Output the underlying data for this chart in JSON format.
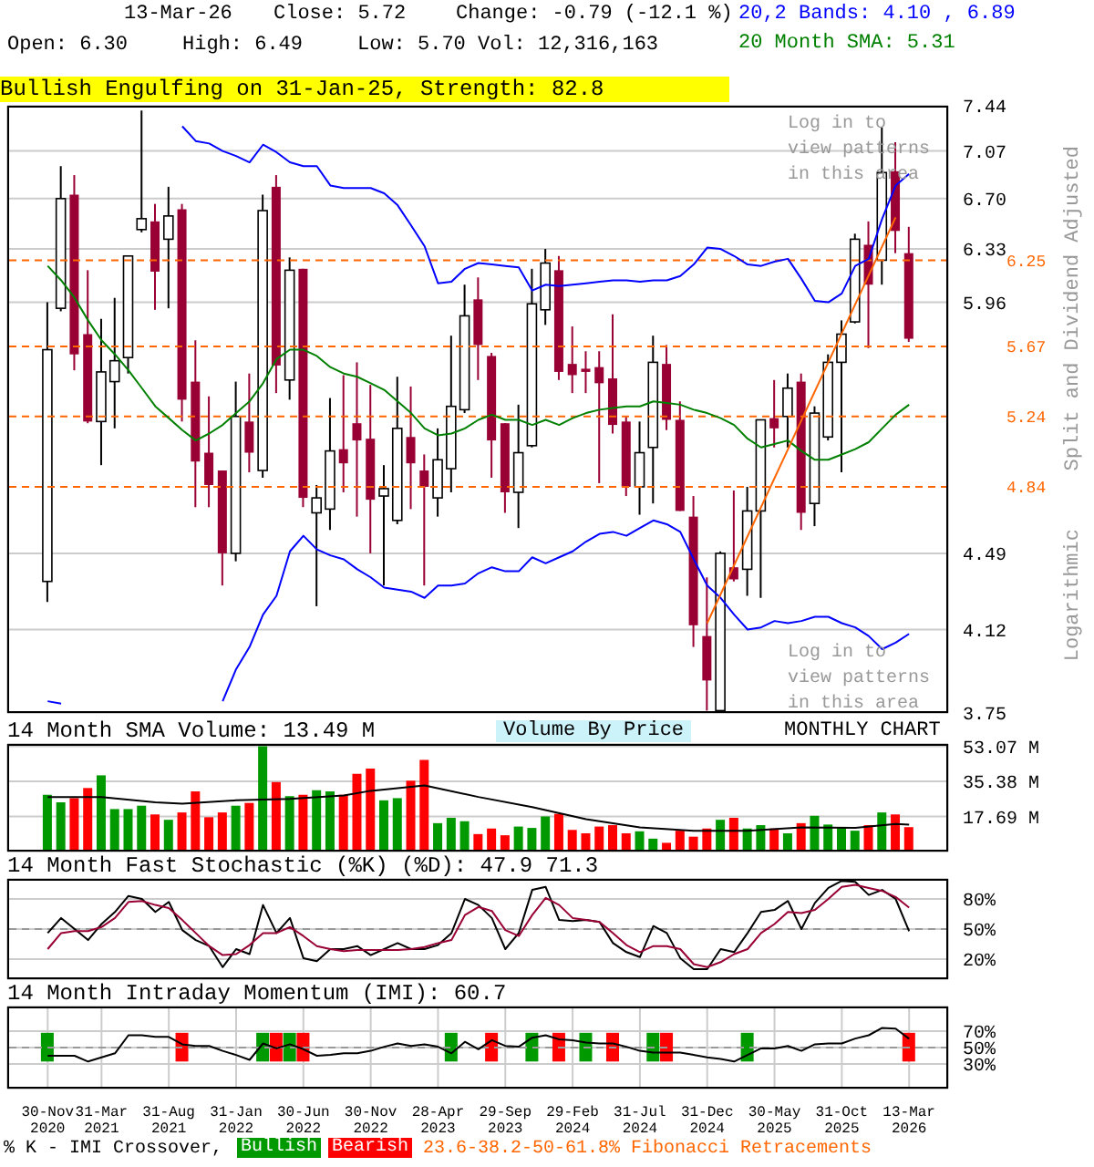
{
  "chart_data": [
    {
      "type": "candlestick",
      "tick_labels": "y",
      "log": "y",
      "grid": true,
      "legend": "top right",
      "ylabel": "Split and Dividend Adjusted",
      "categories": [
        null,
        null,
        null,
        null,
        null,
        null,
        null,
        null,
        null,
        null,
        null,
        null,
        null,
        null,
        null,
        null,
        null,
        null,
        null,
        null,
        null,
        null,
        null,
        null,
        null,
        null,
        null,
        null,
        null,
        null,
        null,
        null,
        null,
        null,
        null,
        null,
        null,
        null,
        null,
        null,
        null,
        null,
        null,
        null,
        null,
        null,
        null,
        null,
        null,
        null,
        null,
        null,
        null,
        null,
        null,
        null,
        null,
        null,
        null,
        null,
        null,
        null,
        null,
        null,
        null
      ],
      "ohlc": [
        [
          4.35,
          5.96,
          4.25,
          5.65
        ],
        [
          5.92,
          6.95,
          5.9,
          6.7
        ],
        [
          6.73,
          6.88,
          5.52,
          5.62
        ],
        [
          5.75,
          6.18,
          5.2,
          5.21
        ],
        [
          5.21,
          5.85,
          4.96,
          5.51
        ],
        [
          5.45,
          5.99,
          5.17,
          5.58
        ],
        [
          5.6,
          6.28,
          5.5,
          6.28
        ],
        [
          6.47,
          7.4,
          6.45,
          6.55
        ],
        [
          6.53,
          6.66,
          5.91,
          6.17
        ],
        [
          6.4,
          6.79,
          5.92,
          6.57
        ],
        [
          6.62,
          6.66,
          5.21,
          5.34
        ],
        [
          5.45,
          5.71,
          4.73,
          4.98
        ],
        [
          5.03,
          5.36,
          4.73,
          4.85
        ],
        [
          4.93,
          4.93,
          4.33,
          4.49
        ],
        [
          4.49,
          5.45,
          4.45,
          5.24
        ],
        [
          5.21,
          5.5,
          4.92,
          5.03
        ],
        [
          4.93,
          6.73,
          4.89,
          6.61
        ],
        [
          6.79,
          6.88,
          5.38,
          5.55
        ],
        [
          5.46,
          6.27,
          5.34,
          6.18
        ],
        [
          6.19,
          6.19,
          4.73,
          4.78
        ],
        [
          4.7,
          4.85,
          4.23,
          4.78
        ],
        [
          4.72,
          5.35,
          4.61,
          5.04
        ],
        [
          5.05,
          5.49,
          4.81,
          4.97
        ],
        [
          5.2,
          5.57,
          4.68,
          5.1
        ],
        [
          5.11,
          5.43,
          4.49,
          4.77
        ],
        [
          4.79,
          4.96,
          4.33,
          4.83
        ],
        [
          4.66,
          5.48,
          4.64,
          5.17
        ],
        [
          5.12,
          5.42,
          4.72,
          4.97
        ],
        [
          4.93,
          5.02,
          4.33,
          4.84
        ],
        [
          4.78,
          5.17,
          4.68,
          4.99
        ],
        [
          4.94,
          5.74,
          4.81,
          5.3
        ],
        [
          5.28,
          6.08,
          5.26,
          5.87
        ],
        [
          5.98,
          6.13,
          5.46,
          5.68
        ],
        [
          5.61,
          5.63,
          4.89,
          5.1
        ],
        [
          5.2,
          5.2,
          4.7,
          4.81
        ],
        [
          4.81,
          5.31,
          4.62,
          5.03
        ],
        [
          5.07,
          6.19,
          5.06,
          5.95
        ],
        [
          5.91,
          6.33,
          5.81,
          6.23
        ],
        [
          6.18,
          6.28,
          5.46,
          5.51
        ],
        [
          5.56,
          5.8,
          5.38,
          5.49
        ],
        [
          5.53,
          5.64,
          5.38,
          5.51
        ],
        [
          5.54,
          5.64,
          4.86,
          5.44
        ],
        [
          5.47,
          5.88,
          5.14,
          5.19
        ],
        [
          5.21,
          5.24,
          4.79,
          4.84
        ],
        [
          4.84,
          5.21,
          4.69,
          5.03
        ],
        [
          5.06,
          5.74,
          4.75,
          5.57
        ],
        [
          5.56,
          5.68,
          5.16,
          5.22
        ],
        [
          5.22,
          5.33,
          4.71,
          4.71
        ],
        [
          4.68,
          4.79,
          4.04,
          4.14
        ],
        [
          4.09,
          4.37,
          3.76,
          3.89
        ],
        [
          3.76,
          4.5,
          3.75,
          4.49
        ],
        [
          4.42,
          4.82,
          4.35,
          4.36
        ],
        [
          4.41,
          4.84,
          4.28,
          4.71
        ],
        [
          4.71,
          5.22,
          4.27,
          5.22
        ],
        [
          5.23,
          5.46,
          5.06,
          5.17
        ],
        [
          5.24,
          5.5,
          5.06,
          5.41
        ],
        [
          5.45,
          5.5,
          4.61,
          4.7
        ],
        [
          4.75,
          5.3,
          4.63,
          5.26
        ],
        [
          5.12,
          5.62,
          5.1,
          5.57
        ],
        [
          5.57,
          5.84,
          4.92,
          5.75
        ],
        [
          5.83,
          6.44,
          5.82,
          6.4
        ],
        [
          6.36,
          6.53,
          5.66,
          6.08
        ],
        [
          6.25,
          7.26,
          6.08,
          6.9
        ],
        [
          6.91,
          7.14,
          6.3,
          6.46
        ],
        [
          6.3,
          6.49,
          5.7,
          5.72
        ]
      ],
      "colors": [
        "#ffffff",
        "#ffffff",
        "#990033",
        "#990033",
        "#ffffff",
        "#ffffff",
        "#ffffff",
        "#ffffff",
        "#990033",
        "#ffffff",
        "#990033",
        "#990033",
        "#990033",
        "#990033",
        "#ffffff",
        "#990033",
        "#ffffff",
        "#990033",
        "#ffffff",
        "#990033",
        "#ffffff",
        "#ffffff",
        "#990033",
        "#990033",
        "#990033",
        "#ffffff",
        "#ffffff",
        "#990033",
        "#990033",
        "#ffffff",
        "#ffffff",
        "#ffffff",
        "#990033",
        "#990033",
        "#990033",
        "#ffffff",
        "#ffffff",
        "#ffffff",
        "#990033",
        "#990033",
        "#990033",
        "#990033",
        "#990033",
        "#990033",
        "#ffffff",
        "#ffffff",
        "#990033",
        "#990033",
        "#990033",
        "#990033",
        "#ffffff",
        "#990033",
        "#ffffff",
        "#ffffff",
        "#990033",
        "#ffffff",
        "#990033",
        "#ffffff",
        "#ffffff",
        "#ffffff",
        "#ffffff",
        "#990033",
        "#ffffff",
        "#990033",
        "#990033"
      ],
      "series": [
        {
          "type": "line",
          "name": "20,2 Bands: 4.10 , 6.89",
          "color": "#0000ff",
          "values": [
            null,
            null,
            null,
            null,
            null,
            null,
            null,
            null,
            null,
            null,
            7.27,
            7.15,
            7.13,
            7.07,
            7.03,
            6.98,
            7.12,
            7.06,
            6.98,
            6.95,
            6.95,
            6.8,
            6.78,
            6.78,
            6.78,
            6.74,
            6.65,
            6.5,
            6.35,
            6.09,
            6.1,
            6.19,
            6.23,
            6.22,
            6.21,
            6.2,
            6.04,
            6.08,
            6.07,
            6.08,
            6.09,
            6.1,
            6.11,
            6.11,
            6.1,
            6.11,
            6.11,
            6.14,
            6.22,
            6.34,
            6.33,
            6.28,
            6.22,
            6.21,
            6.24,
            6.26,
            6.12,
            5.97,
            5.96,
            6.02,
            6.21,
            6.26,
            6.55,
            6.8,
            6.89
          ]
        },
        {
          "type": "line",
          "color": "#0000ff",
          "values": [
            3.8,
            3.79,
            null,
            null,
            null,
            null,
            null,
            null,
            null,
            null,
            null,
            null,
            null,
            null,
            null,
            null,
            null,
            null,
            null,
            null,
            null,
            null,
            null,
            null,
            null,
            null,
            null,
            null,
            null,
            null,
            null,
            null,
            null,
            null,
            null,
            null,
            null,
            null,
            null,
            null,
            null,
            null,
            null,
            null,
            null,
            null,
            null,
            null,
            null,
            null,
            null,
            null,
            null,
            null,
            null,
            null,
            null,
            null,
            null,
            null,
            null,
            null,
            null,
            null,
            null
          ]
        },
        {
          "type": "line",
          "color": "#0000ff",
          "values": [
            null,
            null,
            null,
            null,
            null,
            null,
            null,
            null,
            null,
            null,
            null,
            null,
            null,
            3.8,
            3.94,
            4.04,
            4.19,
            4.28,
            4.5,
            4.58,
            4.51,
            4.48,
            4.46,
            4.41,
            4.37,
            4.32,
            4.31,
            4.3,
            4.27,
            4.33,
            4.33,
            4.34,
            4.39,
            4.42,
            4.4,
            4.4,
            4.47,
            4.44,
            4.47,
            4.5,
            4.55,
            4.59,
            4.6,
            4.58,
            4.62,
            4.66,
            4.64,
            4.6,
            4.46,
            4.33,
            4.27,
            4.19,
            4.12,
            4.13,
            4.16,
            4.15,
            4.16,
            4.18,
            4.18,
            4.15,
            4.13,
            4.09,
            4.03,
            4.06,
            4.1
          ]
        },
        {
          "type": "line",
          "name": "20 Month SMA: 5.31",
          "color": "#008000",
          "values": [
            6.21,
            6.11,
            5.99,
            5.84,
            5.71,
            5.62,
            5.52,
            5.41,
            5.3,
            5.23,
            5.16,
            5.1,
            5.14,
            5.19,
            5.26,
            5.33,
            5.44,
            5.59,
            5.65,
            5.65,
            5.61,
            5.54,
            5.5,
            5.48,
            5.44,
            5.4,
            5.33,
            5.26,
            5.17,
            5.13,
            5.14,
            5.17,
            5.22,
            5.25,
            5.22,
            5.22,
            5.19,
            5.22,
            5.19,
            5.23,
            5.26,
            5.28,
            5.29,
            5.3,
            5.3,
            5.33,
            5.32,
            5.31,
            5.28,
            5.26,
            5.23,
            5.19,
            5.11,
            5.06,
            5.08,
            5.1,
            5.04,
            4.99,
            4.99,
            5.02,
            5.05,
            5.09,
            5.17,
            5.25,
            5.31
          ]
        },
        {
          "type": "line",
          "color": "#ff6600",
          "values": [
            null,
            null,
            null,
            null,
            null,
            null,
            null,
            null,
            null,
            null,
            null,
            null,
            null,
            null,
            null,
            null,
            null,
            null,
            null,
            null,
            null,
            null,
            null,
            null,
            null,
            null,
            null,
            null,
            null,
            null,
            null,
            null,
            null,
            null,
            null,
            null,
            null,
            null,
            null,
            null,
            null,
            null,
            null,
            null,
            null,
            null,
            null,
            null,
            null,
            4.15,
            null,
            null,
            null,
            null,
            null,
            null,
            null,
            null,
            null,
            null,
            null,
            null,
            null,
            6.56,
            null
          ]
        }
      ],
      "ylim": [
        3.75,
        7.44
      ],
      "yticks": [
        3.75,
        4.12,
        4.49,
        5.96,
        6.33,
        {
          "value": 6.7,
          "label": "6.70"
        },
        7.07,
        7.44
      ],
      "ref_lines": [
        {
          "axis": "y",
          "value": 6.25,
          "label": "6.25",
          "color": "#ff6600",
          "line_style": "dashed"
        },
        {
          "axis": "y",
          "value": 5.67,
          "label": "5.67",
          "color": "#ff6600",
          "line_style": "dashed"
        },
        {
          "axis": "y",
          "value": 5.24,
          "label": "5.24",
          "color": "#ff6600",
          "line_style": "dashed"
        },
        {
          "axis": "y",
          "value": 4.84,
          "label": "4.84",
          "color": "#ff6600",
          "line_style": "dashed"
        }
      ],
      "annotations": [
        "13-Mar-26",
        "Close: 5.72",
        "Change: -0.79 (-12.1 %)",
        "Open: 6.30",
        "High: 6.49",
        "Low: 5.70",
        "Vol: 12,316,163",
        "Bullish Engulfing on 31-Jan-25, Strength: 82.8",
        "Log in to view patterns in this area",
        "Log in to view patterns in this area",
        "Logarithmic"
      ]
    },
    {
      "type": "bar",
      "tick_labels": "y",
      "grid": true,
      "title": "14 Month SMA Volume: 13.49 M",
      "categories": [
        null,
        null,
        null,
        null,
        null,
        null,
        null,
        null,
        null,
        null,
        null,
        null,
        null,
        null,
        null,
        null,
        null,
        null,
        null,
        null,
        null,
        null,
        null,
        null,
        null,
        null,
        null,
        null,
        null,
        null,
        null,
        null,
        null,
        null,
        null,
        null,
        null,
        null,
        null,
        null,
        null,
        null,
        null,
        null,
        null,
        null,
        null,
        null,
        null,
        null,
        null,
        null,
        null,
        null,
        null,
        null,
        null,
        null,
        null,
        null,
        null,
        null,
        null,
        null,
        null
      ],
      "series": [
        {
          "type": "bar",
          "values": [
            28.6,
            24.8,
            26.9,
            32.0,
            38.4,
            21.4,
            21.4,
            23.1,
            18.7,
            16.0,
            19.7,
            30.3,
            17.3,
            19.7,
            23.1,
            24.5,
            53.0,
            35.0,
            27.9,
            28.6,
            30.9,
            30.3,
            28.6,
            39.1,
            41.8,
            25.8,
            26.9,
            35.7,
            46.2,
            14.3,
            17.0,
            15.3,
            8.8,
            11.6,
            8.2,
            12.6,
            11.9,
            17.7,
            19.0,
            10.9,
            9.2,
            12.6,
            13.3,
            9.2,
            10.2,
            6.5,
            4.4,
            10.5,
            7.5,
            11.6,
            16.0,
            17.0,
            11.6,
            13.3,
            11.6,
            9.2,
            14.3,
            18.0,
            13.6,
            12.2,
            10.5,
            13.3,
            19.7,
            18.7,
            12.3
          ],
          "colors": [
            "#009900",
            "#009900",
            "#ff0000",
            "#ff0000",
            "#009900",
            "#009900",
            "#009900",
            "#009900",
            "#ff0000",
            "#009900",
            "#ff0000",
            "#ff0000",
            "#ff0000",
            "#ff0000",
            "#009900",
            "#ff0000",
            "#009900",
            "#ff0000",
            "#009900",
            "#ff0000",
            "#009900",
            "#009900",
            "#ff0000",
            "#ff0000",
            "#ff0000",
            "#009900",
            "#009900",
            "#ff0000",
            "#ff0000",
            "#009900",
            "#009900",
            "#009900",
            "#ff0000",
            "#ff0000",
            "#ff0000",
            "#009900",
            "#009900",
            "#009900",
            "#ff0000",
            "#ff0000",
            "#ff0000",
            "#ff0000",
            "#ff0000",
            "#ff0000",
            "#009900",
            "#009900",
            "#ff0000",
            "#ff0000",
            "#ff0000",
            "#ff0000",
            "#009900",
            "#ff0000",
            "#009900",
            "#009900",
            "#ff0000",
            "#009900",
            "#ff0000",
            "#009900",
            "#009900",
            "#009900",
            "#009900",
            "#ff0000",
            "#009900",
            "#ff0000",
            "#ff0000"
          ]
        },
        {
          "type": "line",
          "color": "#000000",
          "values": [
            27.5,
            null,
            null,
            null,
            27.5,
            null,
            null,
            null,
            24.8,
            null,
            24.1,
            null,
            null,
            null,
            25.8,
            null,
            null,
            null,
            26.5,
            null,
            null,
            null,
            28.2,
            null,
            30.6,
            null,
            null,
            32.6,
            33.3,
            null,
            null,
            null,
            27.5,
            null,
            null,
            null,
            22.4,
            null,
            null,
            null,
            16.3,
            null,
            null,
            null,
            12.2,
            null,
            null,
            null,
            10.5,
            null,
            null,
            null,
            10.5,
            null,
            null,
            null,
            12.2,
            null,
            null,
            null,
            11.9,
            null,
            null,
            13.9,
            13.5
          ]
        }
      ],
      "ylim": [
        0,
        54.2
      ],
      "yticks": [
        {
          "value": 17.69,
          "label": "17.69 M"
        },
        {
          "value": 35.38,
          "label": "35.38 M"
        },
        {
          "value": 53.07,
          "label": "53.07 M"
        }
      ],
      "annotations": [
        "Volume By Price",
        "MONTHLY CHART"
      ]
    },
    {
      "type": "line",
      "tick_labels": "y",
      "grid": true,
      "title": "14 Month Fast Stochastic (%K) (%D): 47.9  71.3",
      "categories": [
        null,
        null,
        null,
        null,
        null,
        null,
        null,
        null,
        null,
        null,
        null,
        null,
        null,
        null,
        null,
        null,
        null,
        null,
        null,
        null,
        null,
        null,
        null,
        null,
        null,
        null,
        null,
        null,
        null,
        null,
        null,
        null,
        null,
        null,
        null,
        null,
        null,
        null,
        null,
        null,
        null,
        null,
        null,
        null,
        null,
        null,
        null,
        null,
        null,
        null,
        null,
        null,
        null,
        null,
        null,
        null,
        null,
        null,
        null,
        null,
        null,
        null,
        null,
        null,
        null
      ],
      "series": [
        {
          "color": "#000000",
          "values": [
            46,
            61,
            50,
            39,
            55,
            67,
            83,
            80,
            67,
            77,
            49,
            39,
            33,
            12,
            30,
            25,
            74,
            46,
            61,
            21,
            18,
            30,
            30,
            33,
            24,
            30,
            36,
            30,
            30,
            34,
            46,
            80,
            74,
            61,
            30,
            46,
            89,
            92,
            59,
            58,
            59,
            57,
            36,
            27,
            22,
            53,
            46,
            21,
            10,
            10,
            30,
            27,
            46,
            67,
            69,
            78,
            50,
            76,
            91,
            98,
            97,
            84,
            89,
            80,
            47.9
          ]
        },
        {
          "color": "#990033",
          "values": [
            30,
            46,
            48,
            48,
            52,
            61,
            77,
            78,
            74,
            71,
            59,
            46,
            33,
            24,
            25,
            34,
            46,
            46,
            52,
            43,
            33,
            30,
            28,
            29,
            29,
            29,
            29,
            30,
            32,
            36,
            39,
            64,
            72,
            68,
            49,
            43,
            64,
            81,
            74,
            61,
            59,
            57,
            46,
            34,
            27,
            33,
            33,
            30,
            15,
            12,
            17,
            25,
            30,
            46,
            55,
            67,
            66,
            69,
            80,
            92,
            94,
            91,
            88,
            82,
            71.3
          ]
        }
      ],
      "ylim": [
        0,
        100
      ],
      "yticks": [
        {
          "value": 20,
          "label": "20%"
        },
        {
          "value": 50,
          "label": "50%"
        },
        {
          "value": 80,
          "label": "80%"
        }
      ],
      "ref_lines": [
        {
          "axis": "y",
          "value": 50,
          "color": "#999999",
          "line_style": "dashed"
        }
      ]
    },
    {
      "type": "line",
      "grid": true,
      "legend": "bottom",
      "title": "14 Month Intraday Momentum (IMI): 60.7",
      "categories": [
        "30-Nov 2020",
        null,
        null,
        null,
        "31-Mar 2021",
        null,
        null,
        null,
        null,
        "31-Aug 2021",
        null,
        null,
        null,
        null,
        "31-Jan 2022",
        null,
        null,
        null,
        null,
        "30-Jun 2022",
        null,
        null,
        null,
        null,
        "30-Nov 2022",
        null,
        null,
        null,
        null,
        "28-Apr 2023",
        null,
        null,
        null,
        null,
        "29-Sep 2023",
        null,
        null,
        null,
        null,
        "29-Feb 2024",
        null,
        null,
        null,
        null,
        "31-Jul 2024",
        null,
        null,
        null,
        null,
        "31-Dec 2024",
        null,
        null,
        null,
        null,
        "30-May 2025",
        null,
        null,
        null,
        null,
        "31-Oct 2025",
        null,
        null,
        null,
        null,
        "13-Mar 2026"
      ],
      "series": [
        {
          "type": "bar",
          "name": "Bullish",
          "color": "#009900",
          "values": [
            35,
            null,
            null,
            null,
            null,
            null,
            null,
            null,
            null,
            null,
            null,
            null,
            null,
            null,
            null,
            null,
            35,
            null,
            35,
            null,
            null,
            null,
            null,
            null,
            null,
            null,
            null,
            null,
            null,
            null,
            35,
            null,
            null,
            null,
            null,
            null,
            35,
            null,
            null,
            null,
            35,
            null,
            null,
            null,
            null,
            35,
            null,
            null,
            null,
            null,
            null,
            null,
            35,
            null,
            null,
            null,
            null,
            null,
            null,
            null,
            null,
            null,
            null,
            null,
            null
          ],
          "base": [
            33,
            null,
            null,
            null,
            null,
            null,
            null,
            null,
            null,
            null,
            null,
            null,
            null,
            null,
            null,
            null,
            33,
            null,
            33,
            null,
            null,
            null,
            null,
            null,
            null,
            null,
            null,
            null,
            null,
            null,
            33,
            null,
            null,
            null,
            null,
            null,
            33,
            null,
            null,
            null,
            33,
            null,
            null,
            null,
            null,
            33,
            null,
            null,
            null,
            null,
            null,
            null,
            33,
            null,
            null,
            null,
            null,
            null,
            null,
            null,
            null,
            null,
            null,
            null,
            null
          ]
        },
        {
          "type": "bar",
          "name": "Bearish",
          "color": "#ff0000",
          "values": [
            null,
            null,
            null,
            null,
            null,
            null,
            null,
            null,
            null,
            null,
            35,
            null,
            null,
            null,
            null,
            null,
            null,
            35,
            null,
            35,
            null,
            null,
            null,
            null,
            null,
            null,
            null,
            null,
            null,
            null,
            null,
            null,
            null,
            35,
            null,
            null,
            null,
            null,
            35,
            null,
            null,
            null,
            35,
            null,
            null,
            null,
            35,
            null,
            null,
            null,
            null,
            null,
            null,
            null,
            null,
            null,
            null,
            null,
            null,
            null,
            null,
            null,
            null,
            null,
            35
          ],
          "base": [
            null,
            null,
            null,
            null,
            null,
            null,
            null,
            null,
            null,
            null,
            33,
            null,
            null,
            null,
            null,
            null,
            null,
            33,
            null,
            33,
            null,
            null,
            null,
            null,
            null,
            null,
            null,
            null,
            null,
            null,
            null,
            null,
            null,
            33,
            null,
            null,
            null,
            null,
            33,
            null,
            null,
            null,
            33,
            null,
            null,
            null,
            33,
            null,
            null,
            null,
            null,
            null,
            null,
            null,
            null,
            null,
            null,
            null,
            null,
            null,
            null,
            null,
            null,
            null,
            33
          ]
        },
        {
          "type": "line",
          "color": "#000000",
          "values": [
            40,
            40,
            40,
            33,
            38,
            43,
            65,
            65,
            63,
            63,
            54,
            52,
            52,
            46,
            41,
            35,
            55,
            49,
            54,
            48,
            40,
            41,
            43,
            43,
            46,
            51,
            55,
            52,
            54,
            51,
            43,
            57,
            48,
            59,
            52,
            51,
            62,
            65,
            60,
            59,
            56,
            55,
            55,
            51,
            46,
            44,
            44,
            44,
            41,
            38,
            36,
            33,
            41,
            49,
            49,
            52,
            46,
            54,
            55,
            55,
            61,
            65,
            74,
            73,
            60.7
          ]
        }
      ],
      "ylim": [
        0,
        100
      ],
      "yticks": [
        {
          "value": 30,
          "label": "30%"
        },
        {
          "value": 50,
          "label": "50%"
        },
        {
          "value": 70,
          "label": "70%"
        }
      ],
      "ref_lines": [
        {
          "axis": "y",
          "value": 50,
          "color": "#999999",
          "line_style": "dashed"
        }
      ],
      "annotations": [
        "% K - IMI Crossover,",
        "23.6-38.2-50-61.8% Fibonacci Retracements"
      ]
    }
  ]
}
